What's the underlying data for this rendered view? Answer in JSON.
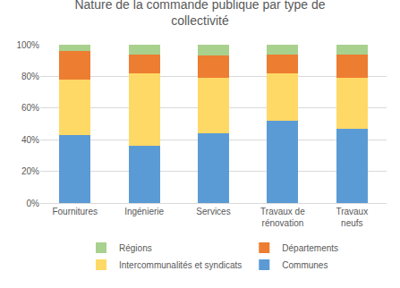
{
  "chart_data": {
    "type": "bar",
    "title": "Nature de la commande publique par type de collectivité",
    "categories": [
      "Fournitures",
      "Ingénierie",
      "Services",
      "Travaux de rénovation",
      "Travaux neufs"
    ],
    "series": [
      {
        "name": "Communes",
        "color": "#5b9bd5",
        "values": [
          43,
          36,
          44,
          52,
          47
        ]
      },
      {
        "name": "Intercommunalités et syndicats",
        "color": "#ffd966",
        "values": [
          35,
          46,
          35,
          30,
          32
        ]
      },
      {
        "name": "Départements",
        "color": "#ed7d31",
        "values": [
          18,
          12,
          14,
          12,
          15
        ]
      },
      {
        "name": "Régions",
        "color": "#a9d18e",
        "values": [
          4,
          6,
          7,
          6,
          6
        ]
      }
    ],
    "stacked": true,
    "ylim": [
      0,
      100
    ],
    "yticks": [
      {
        "value": 0,
        "label": "0%"
      },
      {
        "value": 20,
        "label": "20%"
      },
      {
        "value": 40,
        "label": "40%"
      },
      {
        "value": 60,
        "label": "60%"
      },
      {
        "value": 80,
        "label": "80%"
      },
      {
        "value": 100,
        "label": "100%"
      }
    ],
    "grid": true,
    "legend": "bottom"
  }
}
